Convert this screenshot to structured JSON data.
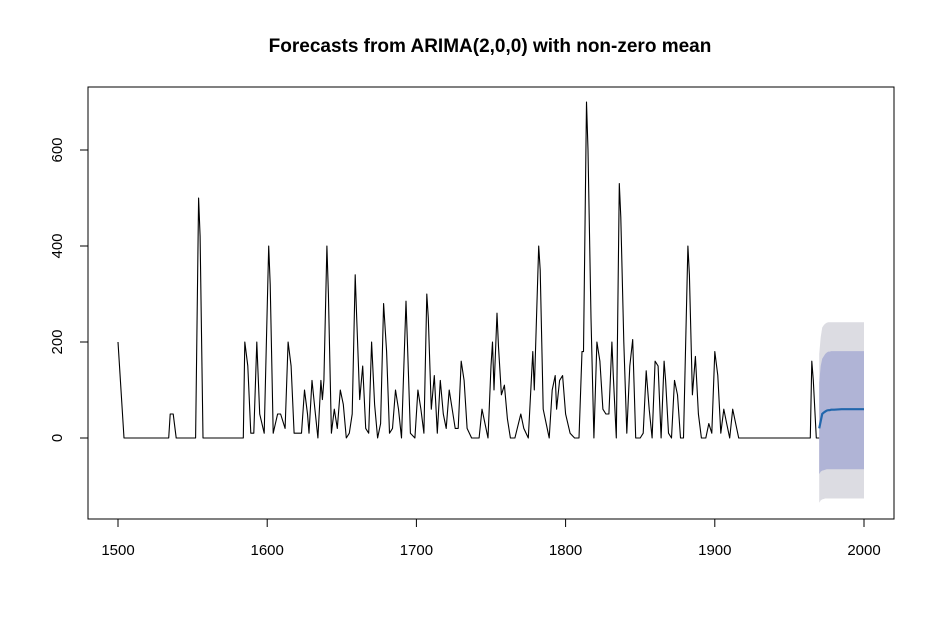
{
  "chart_data": {
    "type": "line",
    "title": "Forecasts from ARIMA(2,0,0) with non-zero mean",
    "xlabel": "",
    "ylabel": "",
    "xlim": [
      1500,
      2000
    ],
    "ylim": [
      -150,
      700
    ],
    "x_ticks": [
      1500,
      1600,
      1700,
      1800,
      1900,
      2000
    ],
    "y_ticks": [
      0,
      200,
      400,
      600
    ],
    "x_tick_labels": [
      "1500",
      "1600",
      "1700",
      "1800",
      "1900",
      "2000"
    ],
    "y_tick_labels": [
      "0",
      "200",
      "400",
      "600"
    ],
    "grid": false,
    "legend": "none",
    "series_color": "#000000",
    "forecast_color": "#2166AC",
    "band80_color": "#B0B4D6",
    "band95_color": "#DCDCE2",
    "observed": [
      [
        1500,
        200
      ],
      [
        1504,
        0
      ],
      [
        1534,
        0
      ],
      [
        1535,
        50
      ],
      [
        1537,
        50
      ],
      [
        1539,
        0
      ],
      [
        1552,
        0
      ],
      [
        1554,
        500
      ],
      [
        1555,
        420
      ],
      [
        1557,
        0
      ],
      [
        1584,
        0
      ],
      [
        1585,
        200
      ],
      [
        1587,
        150
      ],
      [
        1589,
        10
      ],
      [
        1591,
        10
      ],
      [
        1593,
        200
      ],
      [
        1595,
        50
      ],
      [
        1598,
        10
      ],
      [
        1601,
        400
      ],
      [
        1602,
        320
      ],
      [
        1604,
        10
      ],
      [
        1607,
        50
      ],
      [
        1609,
        50
      ],
      [
        1612,
        20
      ],
      [
        1614,
        200
      ],
      [
        1616,
        150
      ],
      [
        1618,
        10
      ],
      [
        1621,
        10
      ],
      [
        1623,
        10
      ],
      [
        1625,
        100
      ],
      [
        1627,
        50
      ],
      [
        1628,
        10
      ],
      [
        1630,
        120
      ],
      [
        1632,
        60
      ],
      [
        1634,
        0
      ],
      [
        1636,
        120
      ],
      [
        1637,
        80
      ],
      [
        1638,
        120
      ],
      [
        1640,
        400
      ],
      [
        1641,
        300
      ],
      [
        1643,
        10
      ],
      [
        1645,
        60
      ],
      [
        1647,
        20
      ],
      [
        1649,
        100
      ],
      [
        1651,
        70
      ],
      [
        1653,
        0
      ],
      [
        1655,
        10
      ],
      [
        1657,
        50
      ],
      [
        1659,
        340
      ],
      [
        1660,
        250
      ],
      [
        1662,
        80
      ],
      [
        1664,
        150
      ],
      [
        1666,
        20
      ],
      [
        1668,
        10
      ],
      [
        1670,
        200
      ],
      [
        1672,
        70
      ],
      [
        1674,
        0
      ],
      [
        1676,
        30
      ],
      [
        1678,
        280
      ],
      [
        1680,
        180
      ],
      [
        1682,
        10
      ],
      [
        1684,
        20
      ],
      [
        1686,
        100
      ],
      [
        1688,
        60
      ],
      [
        1690,
        0
      ],
      [
        1693,
        285
      ],
      [
        1694,
        200
      ],
      [
        1696,
        10
      ],
      [
        1699,
        0
      ],
      [
        1701,
        100
      ],
      [
        1703,
        60
      ],
      [
        1705,
        10
      ],
      [
        1707,
        300
      ],
      [
        1708,
        250
      ],
      [
        1710,
        60
      ],
      [
        1712,
        130
      ],
      [
        1714,
        10
      ],
      [
        1716,
        120
      ],
      [
        1718,
        50
      ],
      [
        1720,
        20
      ],
      [
        1722,
        100
      ],
      [
        1724,
        60
      ],
      [
        1726,
        20
      ],
      [
        1728,
        20
      ],
      [
        1730,
        160
      ],
      [
        1732,
        120
      ],
      [
        1734,
        20
      ],
      [
        1737,
        0
      ],
      [
        1742,
        0
      ],
      [
        1744,
        60
      ],
      [
        1746,
        30
      ],
      [
        1748,
        0
      ],
      [
        1750,
        150
      ],
      [
        1751,
        200
      ],
      [
        1752,
        100
      ],
      [
        1754,
        260
      ],
      [
        1755,
        190
      ],
      [
        1757,
        90
      ],
      [
        1759,
        110
      ],
      [
        1761,
        40
      ],
      [
        1763,
        0
      ],
      [
        1766,
        0
      ],
      [
        1770,
        50
      ],
      [
        1772,
        20
      ],
      [
        1775,
        0
      ],
      [
        1778,
        180
      ],
      [
        1779,
        100
      ],
      [
        1782,
        400
      ],
      [
        1783,
        350
      ],
      [
        1785,
        60
      ],
      [
        1787,
        30
      ],
      [
        1789,
        0
      ],
      [
        1791,
        100
      ],
      [
        1793,
        130
      ],
      [
        1794,
        60
      ],
      [
        1796,
        120
      ],
      [
        1798,
        130
      ],
      [
        1800,
        50
      ],
      [
        1803,
        10
      ],
      [
        1806,
        0
      ],
      [
        1809,
        0
      ],
      [
        1811,
        180
      ],
      [
        1812,
        180
      ],
      [
        1814,
        700
      ],
      [
        1815,
        600
      ],
      [
        1817,
        250
      ],
      [
        1819,
        0
      ],
      [
        1821,
        200
      ],
      [
        1823,
        160
      ],
      [
        1825,
        60
      ],
      [
        1827,
        50
      ],
      [
        1829,
        50
      ],
      [
        1831,
        200
      ],
      [
        1832,
        130
      ],
      [
        1834,
        0
      ],
      [
        1836,
        530
      ],
      [
        1837,
        460
      ],
      [
        1839,
        200
      ],
      [
        1841,
        10
      ],
      [
        1843,
        150
      ],
      [
        1845,
        205
      ],
      [
        1847,
        0
      ],
      [
        1850,
        0
      ],
      [
        1852,
        10
      ],
      [
        1854,
        140
      ],
      [
        1856,
        60
      ],
      [
        1858,
        0
      ],
      [
        1860,
        160
      ],
      [
        1862,
        150
      ],
      [
        1864,
        0
      ],
      [
        1866,
        160
      ],
      [
        1867,
        120
      ],
      [
        1869,
        10
      ],
      [
        1871,
        0
      ],
      [
        1873,
        120
      ],
      [
        1875,
        90
      ],
      [
        1877,
        0
      ],
      [
        1879,
        0
      ],
      [
        1882,
        400
      ],
      [
        1883,
        340
      ],
      [
        1885,
        90
      ],
      [
        1887,
        170
      ],
      [
        1889,
        50
      ],
      [
        1891,
        0
      ],
      [
        1894,
        0
      ],
      [
        1896,
        30
      ],
      [
        1898,
        10
      ],
      [
        1900,
        180
      ],
      [
        1902,
        130
      ],
      [
        1904,
        10
      ],
      [
        1906,
        60
      ],
      [
        1908,
        30
      ],
      [
        1910,
        0
      ],
      [
        1912,
        60
      ],
      [
        1914,
        30
      ],
      [
        1916,
        0
      ],
      [
        1920,
        0
      ],
      [
        1964,
        0
      ],
      [
        1965,
        160
      ],
      [
        1966,
        120
      ],
      [
        1968,
        0
      ],
      [
        1970,
        0
      ]
    ],
    "forecast": {
      "x": [
        1970,
        1971,
        1972,
        1973,
        1974,
        1975,
        1976,
        1977,
        1978,
        1980,
        1985,
        1990,
        1995,
        2000
      ],
      "mean": [
        20,
        35,
        50,
        53,
        55,
        57,
        58,
        58,
        59,
        59,
        60,
        60,
        60,
        60
      ],
      "lo80": [
        -75,
        -70,
        -68,
        -67,
        -66,
        -65,
        -65,
        -65,
        -65,
        -65,
        -65,
        -65,
        -65,
        -65
      ],
      "hi80": [
        115,
        150,
        165,
        170,
        175,
        178,
        180,
        180,
        181,
        181,
        181,
        181,
        181,
        181
      ],
      "lo95": [
        -135,
        -130,
        -128,
        -127,
        -126,
        -126,
        -126,
        -126,
        -126,
        -126,
        -126,
        -126,
        -126,
        -126
      ],
      "hi95": [
        175,
        210,
        230,
        235,
        238,
        240,
        241,
        241,
        241,
        241,
        241,
        241,
        241,
        241
      ]
    }
  }
}
